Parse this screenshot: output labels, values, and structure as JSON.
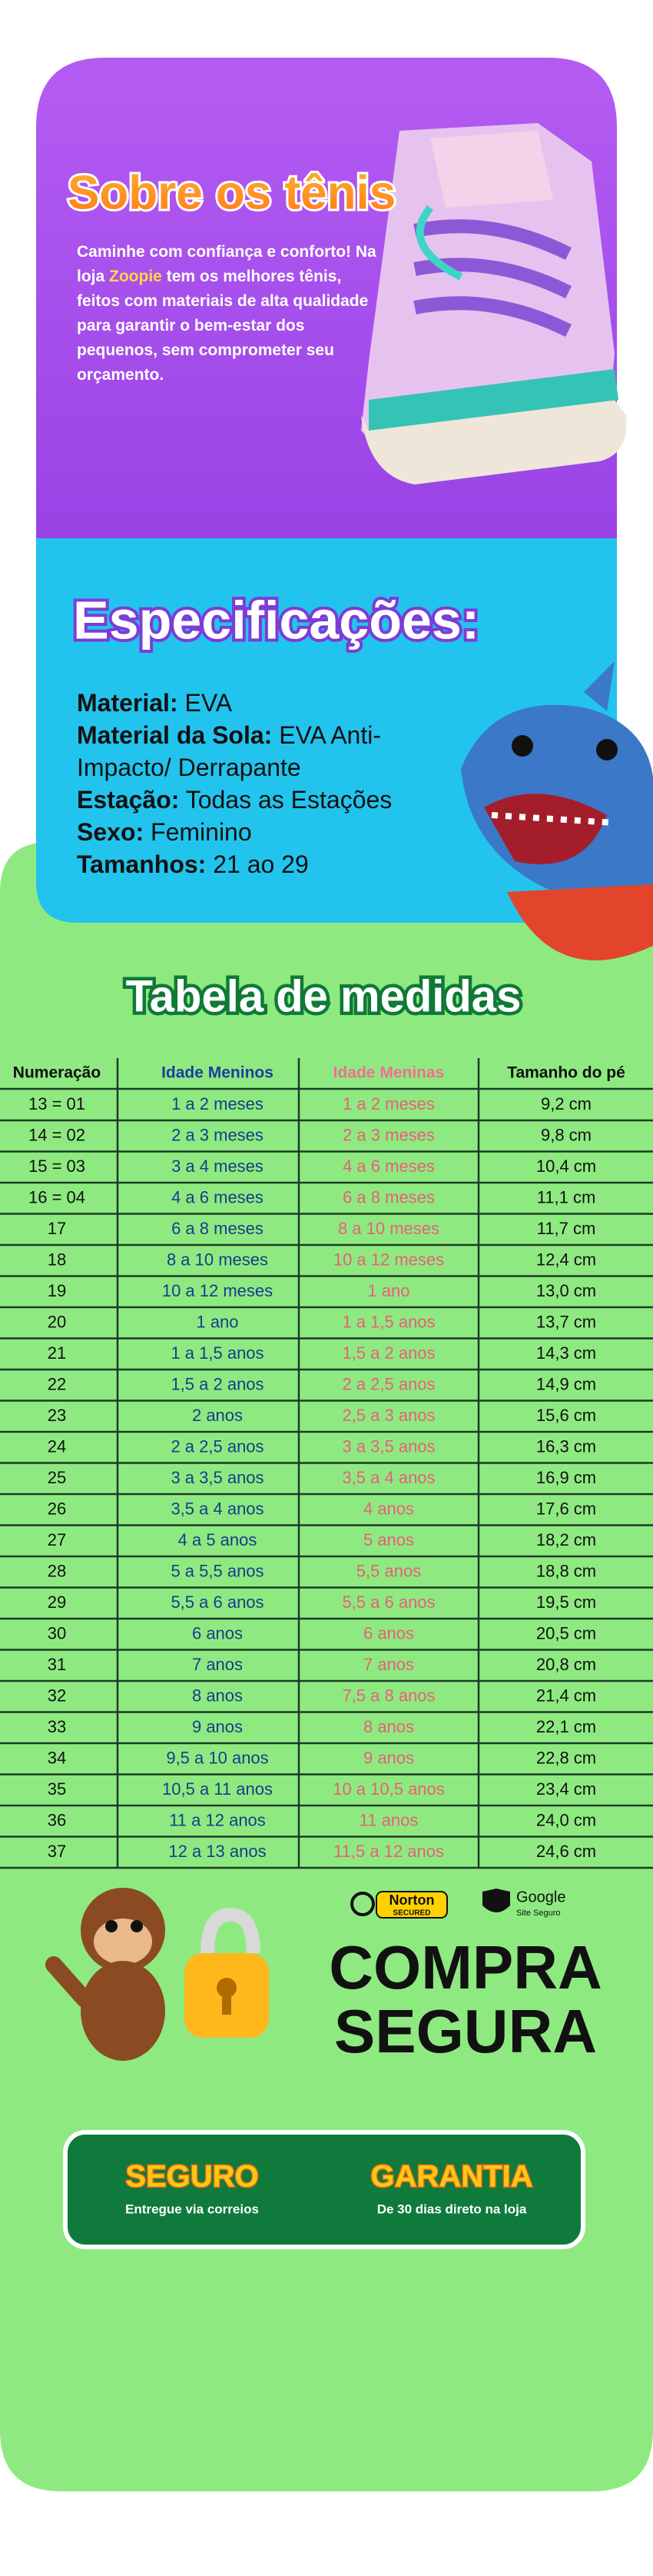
{
  "about": {
    "title": "Sobre os tênis",
    "text_before": "Caminhe com confiança e conforto! Na loja",
    "brand": "Zoopie",
    "text_after": "tem os melhores tênis, feitos com materiais de alta qualidade para garantir o bem-estar dos pequenos, sem comprometer seu orçamento."
  },
  "specs": {
    "title": "Especificações:",
    "items": [
      {
        "label": "Material:",
        "value": "EVA"
      },
      {
        "label": "Material da Sola:",
        "value": "EVA Anti-Impacto/ Derrapante"
      },
      {
        "label": "Estação:",
        "value": "Todas as Estações"
      },
      {
        "label": "Sexo:",
        "value": "Feminino"
      },
      {
        "label": "Tamanhos:",
        "value": "21 ao 29"
      }
    ]
  },
  "table": {
    "title": "Tabela de medidas",
    "header": [
      "Numeração",
      "Idade Meninos",
      "Idade Meninas",
      "Tamanho do pé"
    ],
    "rows": [
      [
        "13 = 01",
        "1 a 2 meses",
        "1 a 2 meses",
        "9,2 cm"
      ],
      [
        "14 = 02",
        "2 a 3 meses",
        "2 a 3 meses",
        "9,8 cm"
      ],
      [
        "15 = 03",
        "3 a 4 meses",
        "4 a 6 meses",
        "10,4 cm"
      ],
      [
        "16 = 04",
        "4 a 6 meses",
        "6 a 8 meses",
        "11,1 cm"
      ],
      [
        "17",
        "6 a 8 meses",
        "8 a 10 meses",
        "11,7 cm"
      ],
      [
        "18",
        "8 a 10 meses",
        "10 a 12 meses",
        "12,4 cm"
      ],
      [
        "19",
        "10 a 12 meses",
        "1 ano",
        "13,0 cm"
      ],
      [
        "20",
        "1 ano",
        "1 a 1,5 anos",
        "13,7 cm"
      ],
      [
        "21",
        "1 a 1,5 anos",
        "1,5 a 2 anos",
        "14,3 cm"
      ],
      [
        "22",
        "1,5 a 2 anos",
        "2 a 2,5 anos",
        "14,9 cm"
      ],
      [
        "23",
        "2 anos",
        "2,5 a 3 anos",
        "15,6 cm"
      ],
      [
        "24",
        "2 a 2,5 anos",
        "3 a 3,5 anos",
        "16,3 cm"
      ],
      [
        "25",
        "3 a 3,5 anos",
        "3,5 a 4 anos",
        "16,9 cm"
      ],
      [
        "26",
        "3,5 a 4 anos",
        "4 anos",
        "17,6 cm"
      ],
      [
        "27",
        "4 a 5 anos",
        "5 anos",
        "18,2 cm"
      ],
      [
        "28",
        "5 a 5,5 anos",
        "5,5 anos",
        "18,8 cm"
      ],
      [
        "29",
        "5,5 a 6 anos",
        "5,5 a 6 anos",
        "19,5 cm"
      ],
      [
        "30",
        "6 anos",
        "6 anos",
        "20,5 cm"
      ],
      [
        "31",
        "7 anos",
        "7 anos",
        "20,8 cm"
      ],
      [
        "32",
        "8 anos",
        "7,5 a 8 anos",
        "21,4 cm"
      ],
      [
        "33",
        "9 anos",
        "8 anos",
        "22,1 cm"
      ],
      [
        "34",
        "9,5 a 10 anos",
        "9 anos",
        "22,8 cm"
      ],
      [
        "35",
        "10,5 a 11 anos",
        "10 a 10,5 anos",
        "23,4 cm"
      ],
      [
        "36",
        "11 a 12 anos",
        "11 anos",
        "24,0 cm"
      ],
      [
        "37",
        "12 a 13 anos",
        "11,5 a 12 anos",
        "24,6 cm"
      ]
    ]
  },
  "badges": {
    "norton": "Norton",
    "norton_sub": "SECURED",
    "google": "Google",
    "google_sub": "Site Seguro"
  },
  "secure": {
    "line1": "COMPRA",
    "line2": "SEGURA"
  },
  "guarantees": [
    {
      "title": "SEGURO",
      "text": "Entregue via correios"
    },
    {
      "title": "GARANTIA",
      "text": "De 30 dias direto na loja"
    }
  ]
}
